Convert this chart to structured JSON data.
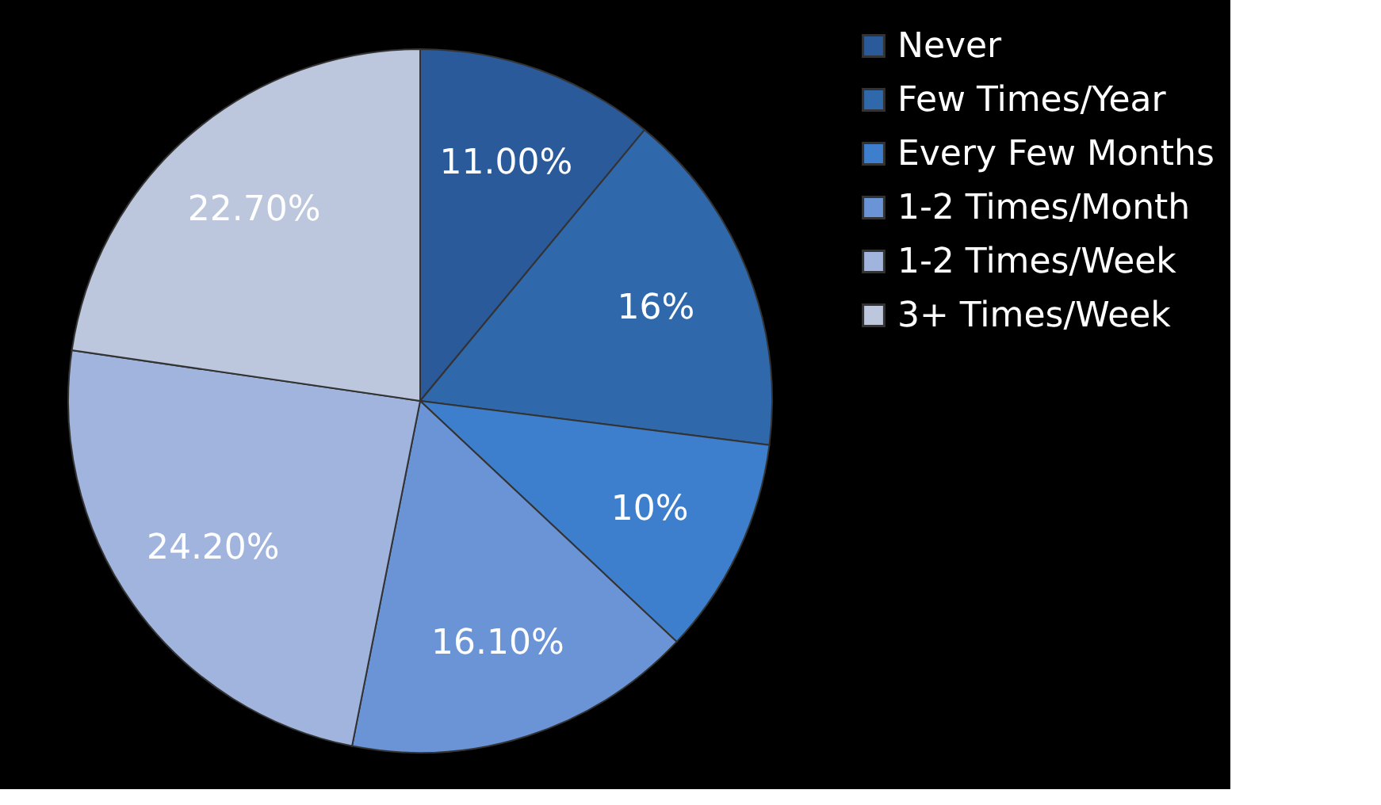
{
  "chart_data": {
    "type": "pie",
    "categories": [
      "Never",
      "Few Times/Year",
      "Every Few Months",
      "1-2 Times/Month",
      "1-2 Times/Week",
      "3+ Times/Week"
    ],
    "values": [
      11,
      16,
      10,
      16.1,
      24.2,
      22.7
    ],
    "value_labels": [
      "11.00%",
      "16%",
      "10%",
      "16.10%",
      "24.20%",
      "22.70%"
    ],
    "colors": [
      "#2a5a9a",
      "#3068ac",
      "#3d7fcc",
      "#6a94d6",
      "#a0b4dd",
      "#bcc6dc"
    ],
    "legend": "right"
  }
}
